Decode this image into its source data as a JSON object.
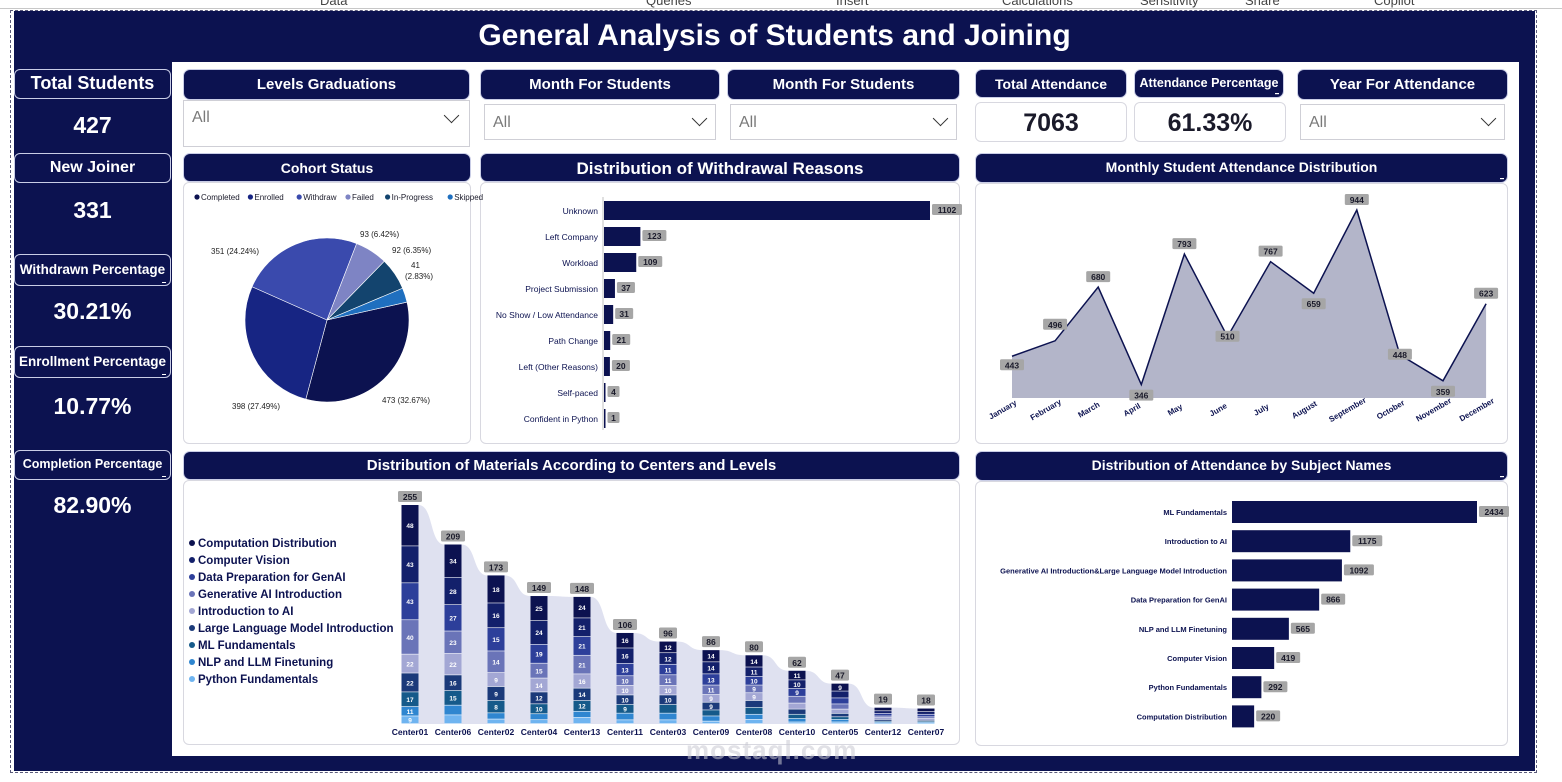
{
  "ribbon": [
    "Data",
    "Queries",
    "Insert",
    "Calculations",
    "Sensitivity",
    "Share",
    "Copilot"
  ],
  "title": "General Analysis of Students and Joining",
  "kpis": [
    {
      "label": "Total Students",
      "value": "427"
    },
    {
      "label": "New Joiner",
      "value": "331"
    },
    {
      "label": "Withdrawn Percentage",
      "value": "30.21%"
    },
    {
      "label": "Enrollment Percentage",
      "value": "10.77%"
    },
    {
      "label": "Completion Percentage",
      "value": "82.90%"
    }
  ],
  "filters": {
    "levels": {
      "label": "Levels Graduations",
      "value": "All"
    },
    "month1": {
      "label": "Month For Students",
      "value": "All"
    },
    "month2": {
      "label": "Month For Students",
      "value": "All"
    },
    "year": {
      "label": "Year For Attendance",
      "value": "All"
    }
  },
  "total_attendance": {
    "label": "Total Attendance",
    "value": "7063"
  },
  "attendance_percentage": {
    "label": "Attendance Percentage",
    "value": "61.33%"
  },
  "panels": {
    "cohort": "Cohort Status",
    "withdrawal": "Distribution of Withdrawal Reasons",
    "monthly": "Monthly Student Attendance Distribution",
    "materials": "Distribution of Materials According to Centers and Levels",
    "subjects": "Distribution of Attendance by Subject Names"
  },
  "colors": {
    "navy": "#0c1250",
    "bar": "#0c1250",
    "area": "#b3b5c9",
    "label_bg": "#a6a6a6"
  },
  "chart_data": [
    {
      "type": "pie",
      "title": "Cohort Status",
      "categories": [
        "Completed",
        "Enrolled",
        "Withdraw",
        "Failed",
        "In-Progress",
        "Skipped"
      ],
      "values": [
        473,
        398,
        351,
        93,
        92,
        41
      ],
      "labels": [
        "473 (32.67%)",
        "398 (27.49%)",
        "351 (24.24%)",
        "93 (6.42%)",
        "92 (6.35%)",
        "41 (2.83%)"
      ],
      "colors": [
        "#0c1250",
        "#172583",
        "#3a4aad",
        "#7e84c4",
        "#13446e",
        "#1f6fbf"
      ],
      "legend": "top"
    },
    {
      "type": "bar",
      "orientation": "horizontal",
      "title": "Distribution of Withdrawal Reasons",
      "categories": [
        "Unknown",
        "Left Company",
        "Workload",
        "Project Submission",
        "No Show / Low Attendance",
        "Path Change",
        "Left (Other Reasons)",
        "Self-paced",
        "Confident in Python"
      ],
      "values": [
        1102,
        123,
        109,
        37,
        31,
        21,
        20,
        4,
        1
      ]
    },
    {
      "type": "area",
      "title": "Monthly Student Attendance Distribution",
      "categories": [
        "January",
        "February",
        "March",
        "April",
        "May",
        "June",
        "July",
        "August",
        "September",
        "October",
        "November",
        "December"
      ],
      "values": [
        443,
        496,
        680,
        346,
        793,
        510,
        767,
        659,
        944,
        448,
        359,
        623
      ]
    },
    {
      "type": "bar",
      "orientation": "vertical",
      "stacked": true,
      "title": "Distribution of Materials According to Centers and Levels",
      "categories": [
        "Center01",
        "Center06",
        "Center02",
        "Center04",
        "Center13",
        "Center11",
        "Center03",
        "Center09",
        "Center08",
        "Center10",
        "Center05",
        "Center12",
        "Center07"
      ],
      "totals": [
        255,
        209,
        173,
        149,
        148,
        106,
        96,
        86,
        80,
        62,
        47,
        19,
        18
      ],
      "legend_series": [
        "Computation Distribution",
        "Computer Vision",
        "Data Preparation for GenAI",
        "Generative AI Introduction",
        "Introduction to AI",
        "Large Language Model Introduction",
        "ML Fundamentals",
        "NLP and LLM Finetuning",
        "Python Fundamentals"
      ],
      "legend_colors": [
        "#0c1250",
        "#13206b",
        "#2d3f9a",
        "#6a74b8",
        "#a3a7d4",
        "#1b3a7a",
        "#155a8a",
        "#2f86d0",
        "#6fb4f0"
      ],
      "segments": [
        [
          48,
          43,
          43,
          40,
          22,
          22,
          17,
          11,
          9
        ],
        [
          34,
          28,
          27,
          23,
          22,
          16,
          15,
          10,
          9
        ],
        [
          18,
          16,
          15,
          14,
          9,
          9,
          8,
          4,
          3
        ],
        [
          25,
          24,
          19,
          15,
          14,
          12,
          10,
          6,
          4
        ],
        [
          24,
          21,
          21,
          21,
          16,
          14,
          12,
          7,
          7
        ],
        [
          16,
          16,
          13,
          10,
          10,
          10,
          9,
          7,
          4
        ],
        [
          12,
          12,
          11,
          11,
          10,
          10,
          9,
          7,
          4
        ],
        [
          14,
          14,
          13,
          11,
          9,
          9,
          7,
          6,
          3
        ],
        [
          14,
          11,
          10,
          9,
          9,
          8,
          8,
          6,
          5
        ],
        [
          11,
          10,
          9,
          8,
          7,
          6,
          5,
          4,
          2
        ],
        [
          9,
          8,
          7,
          6,
          5,
          4,
          3,
          3,
          2
        ],
        [
          4,
          3,
          3,
          2,
          2,
          2,
          1,
          1,
          1
        ],
        [
          4,
          3,
          3,
          2,
          2,
          1,
          1,
          1,
          1
        ]
      ],
      "segment_labels": [
        [
          "48",
          "43",
          "43",
          "40",
          "22",
          "22",
          "17",
          "11",
          "9"
        ],
        [
          "34",
          "28",
          "27",
          "23",
          "22",
          "16",
          "15",
          "",
          ""
        ],
        [
          "18",
          "16",
          "15",
          "14",
          "9",
          "9",
          "8",
          "",
          ""
        ],
        [
          "25",
          "24",
          "19",
          "15",
          "14",
          "12",
          "10",
          "",
          ""
        ],
        [
          "24",
          "21",
          "21",
          "21",
          "16",
          "14",
          "12",
          "7",
          "7"
        ],
        [
          "16",
          "16",
          "13",
          "10",
          "10",
          "10",
          "9",
          "7",
          ""
        ],
        [
          "12",
          "12",
          "11",
          "11",
          "10",
          "10",
          "",
          "",
          ""
        ],
        [
          "14",
          "14",
          "13",
          "11",
          "9",
          "9",
          "7",
          "",
          ""
        ],
        [
          "14",
          "11",
          "10",
          "9",
          "9",
          "8",
          "8",
          "",
          ""
        ],
        [
          "11",
          "10",
          "9",
          "8",
          "7",
          "",
          "",
          "",
          ""
        ],
        [
          "9",
          "8",
          "7",
          "6",
          "5",
          "",
          "",
          "",
          ""
        ],
        [
          "",
          "",
          "",
          "",
          "",
          "",
          "",
          "",
          ""
        ],
        [
          "",
          "",
          "",
          "",
          "",
          "",
          "",
          "",
          ""
        ]
      ]
    },
    {
      "type": "bar",
      "orientation": "horizontal",
      "title": "Distribution of Attendance by Subject Names",
      "categories": [
        "ML Fundamentals",
        "Introduction to AI",
        "Generative AI Introduction&Large Language Model Introduction",
        "Data Preparation for GenAI",
        "NLP and LLM Finetuning",
        "Computer Vision",
        "Python Fundamentals",
        "Computation Distribution"
      ],
      "values": [
        2434,
        1175,
        1092,
        866,
        565,
        419,
        292,
        220
      ]
    }
  ],
  "watermark": "mostaql.com"
}
